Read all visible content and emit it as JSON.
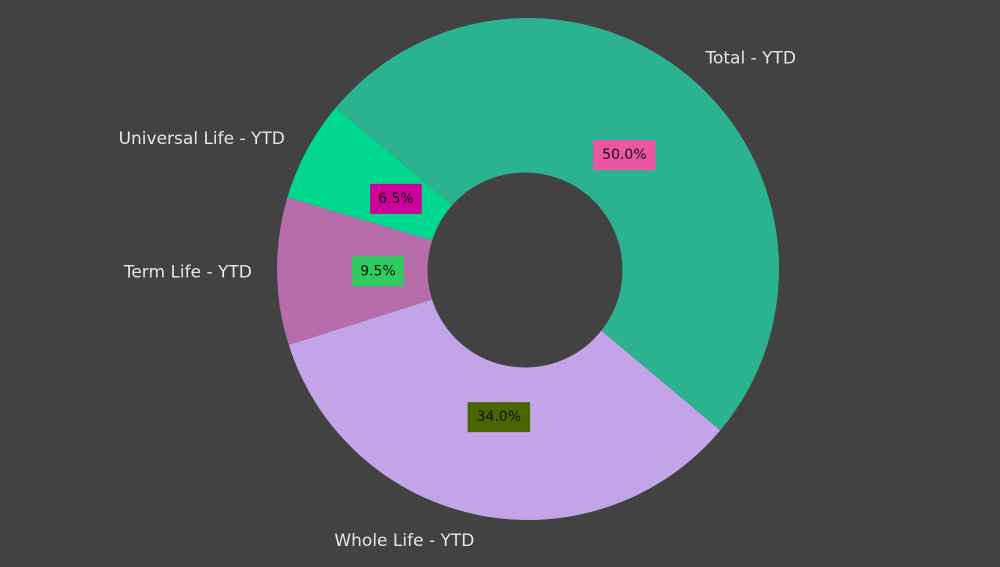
{
  "chart_data": {
    "type": "pie",
    "donut": true,
    "title": "",
    "start_angle_deg_clockwise_from_east": 40,
    "direction": "clockwise",
    "slices": [
      {
        "label": "Whole Life - YTD",
        "value": 34.0,
        "pct_label": "34.0%",
        "color": "#c3a4e8",
        "label_bg": "#4b6600"
      },
      {
        "label": "Term Life - YTD",
        "value": 9.5,
        "pct_label": "9.5%",
        "color": "#b76daa",
        "label_bg": "#2ecc5e"
      },
      {
        "label": "Universal Life - YTD",
        "value": 6.5,
        "pct_label": "6.5%",
        "color": "#00d88f",
        "label_bg": "#cc0099"
      },
      {
        "label": "Total - YTD",
        "value": 50.0,
        "pct_label": "50.0%",
        "color": "#2bb38f",
        "label_bg": "#eb56a2"
      }
    ],
    "background": "#424242",
    "label_color": "#e6e6e6"
  }
}
